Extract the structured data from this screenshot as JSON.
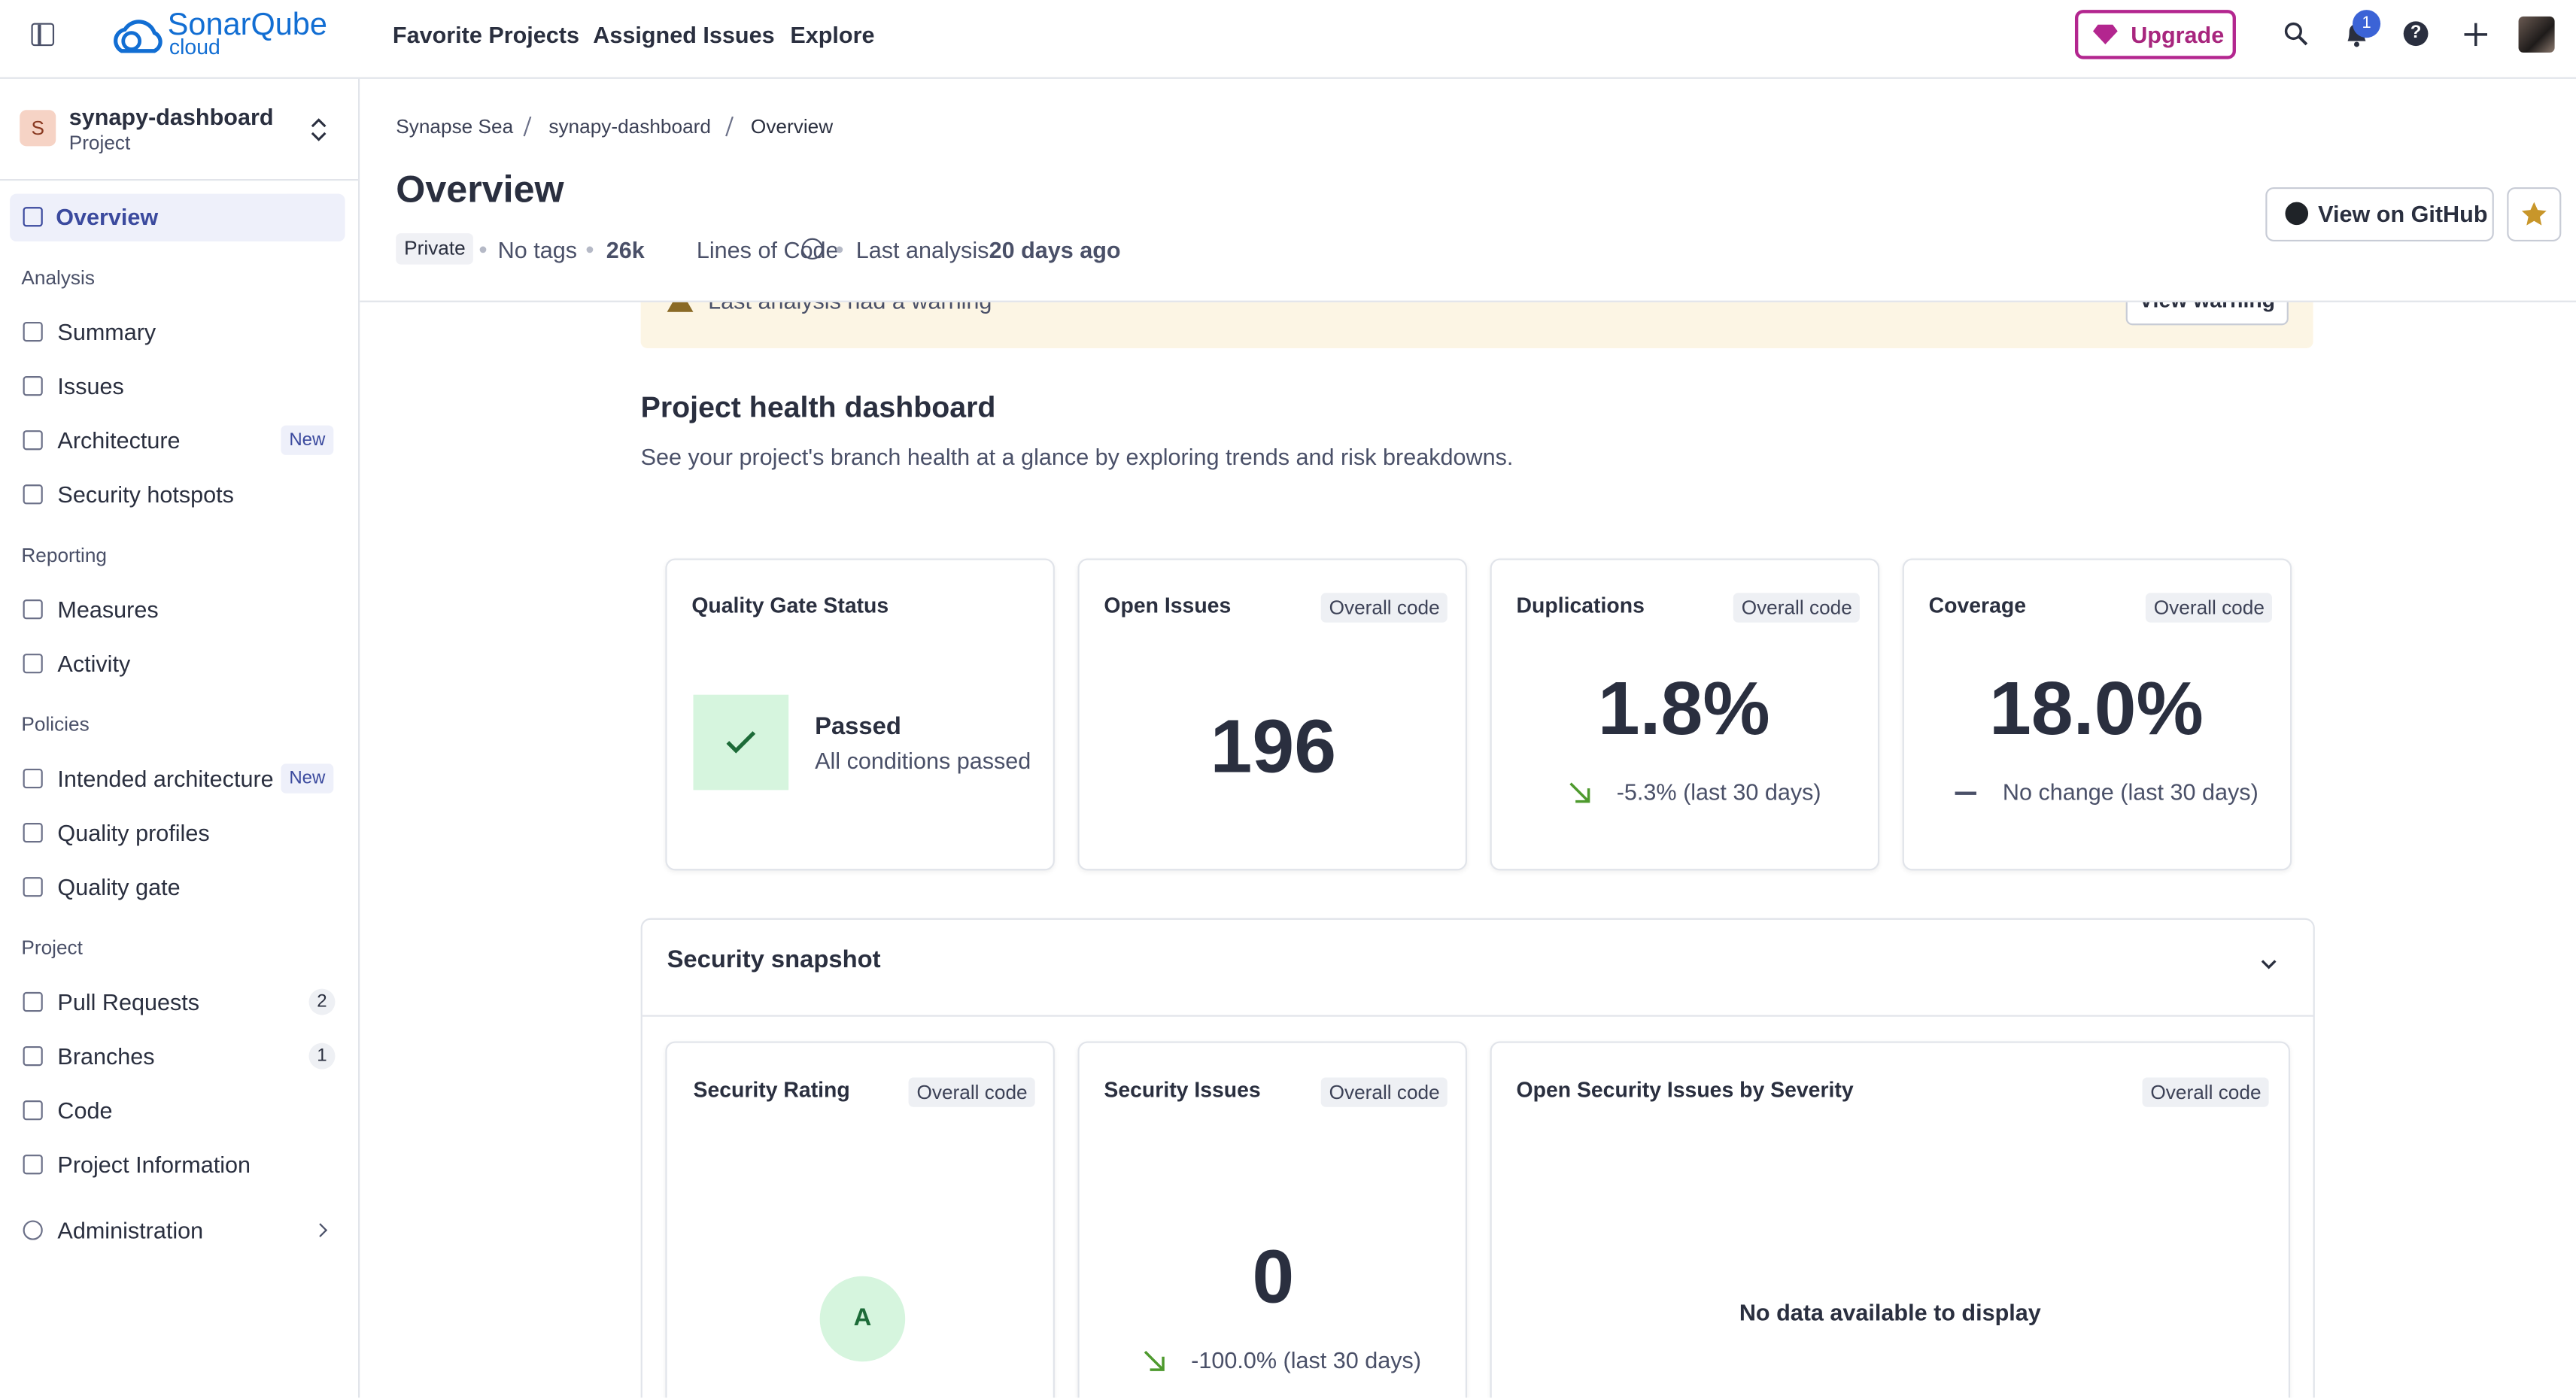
{
  "topbar": {
    "logo": "SonarQube",
    "logo_sub": "cloud",
    "nav": [
      "Favorite Projects",
      "Assigned Issues",
      "Explore"
    ],
    "upgrade": "Upgrade",
    "notifications": "1"
  },
  "sidebar": {
    "project": {
      "initial": "S",
      "name": "synapy-dashboard",
      "kind": "Project"
    },
    "overview": "Overview",
    "sections": [
      {
        "title": "Analysis",
        "items": [
          {
            "label": "Summary"
          },
          {
            "label": "Issues"
          },
          {
            "label": "Architecture",
            "badge": "New"
          },
          {
            "label": "Security hotspots"
          }
        ]
      },
      {
        "title": "Reporting",
        "items": [
          {
            "label": "Measures"
          },
          {
            "label": "Activity"
          }
        ]
      },
      {
        "title": "Policies",
        "items": [
          {
            "label": "Intended architecture",
            "badge": "New"
          },
          {
            "label": "Quality profiles"
          },
          {
            "label": "Quality gate"
          }
        ]
      },
      {
        "title": "Project",
        "items": [
          {
            "label": "Pull Requests",
            "count": "2"
          },
          {
            "label": "Branches",
            "count": "1"
          },
          {
            "label": "Code"
          },
          {
            "label": "Project Information"
          }
        ]
      }
    ],
    "administration": "Administration"
  },
  "header": {
    "breadcrumb": [
      "Synapse Sea",
      "synapy-dashboard",
      "Overview"
    ],
    "title": "Overview",
    "visibility": "Private",
    "tags": "No tags",
    "lines_of_code": "26k",
    "lines_of_code_label": "Lines of Code",
    "last_analysis_label": "Last analysis",
    "last_analysis": "20 days ago",
    "github_button": "View on GitHub"
  },
  "warning": {
    "text": "Last analysis had a warning",
    "button": "View warning"
  },
  "dashboard": {
    "title": "Project health dashboard",
    "description": "See your project's branch health at a glance by exploring trends and risk breakdowns.",
    "cards": [
      {
        "title": "Quality Gate Status",
        "status": "Passed",
        "detail": "All conditions passed"
      },
      {
        "title": "Open Issues",
        "scope": "Overall code",
        "value": "196"
      },
      {
        "title": "Duplications",
        "scope": "Overall code",
        "value": "1.8%",
        "trend": "-5.3% (last 30 days)"
      },
      {
        "title": "Coverage",
        "scope": "Overall code",
        "value": "18.0%",
        "trend": "No change (last 30 days)"
      }
    ]
  },
  "security": {
    "title": "Security snapshot",
    "cards": [
      {
        "title": "Security Rating",
        "scope": "Overall code",
        "value": "A"
      },
      {
        "title": "Security Issues",
        "scope": "Overall code",
        "value": "0",
        "trend": "-100.0% (last 30 days)"
      },
      {
        "title": "Open Security Issues by Severity",
        "scope": "Overall code",
        "empty": "No data available to display"
      }
    ]
  }
}
